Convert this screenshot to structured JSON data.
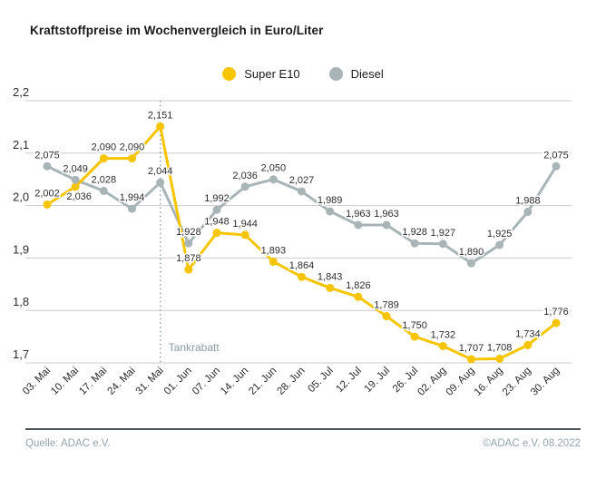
{
  "title": "Kraftstoffpreise im Wochenvergleich in Euro/Liter",
  "legend": [
    {
      "label": "Super E10",
      "color": "#f6c500"
    },
    {
      "label": "Diesel",
      "color": "#a8b4b6"
    }
  ],
  "chart_data": {
    "type": "line",
    "categories": [
      "03. Mai",
      "10. Mai",
      "17. Mai",
      "24. Mai",
      "31. Mai",
      "01. Jun",
      "07. Jun",
      "14. Jun",
      "21. Jun",
      "28. Jun",
      "05. Jul",
      "12. Jul",
      "19. Jul",
      "26. Jul",
      "02. Aug",
      "09. Aug",
      "16. Aug",
      "23. Aug",
      "30. Aug"
    ],
    "series": [
      {
        "name": "Super E10",
        "color": "#f6c500",
        "values": [
          2.002,
          2.036,
          2.09,
          2.09,
          2.151,
          1.878,
          1.948,
          1.944,
          1.893,
          1.864,
          1.843,
          1.826,
          1.789,
          1.75,
          1.732,
          1.707,
          1.708,
          1.734,
          1.776
        ]
      },
      {
        "name": "Diesel",
        "color": "#a8b4b6",
        "values": [
          2.075,
          2.049,
          2.028,
          1.994,
          2.044,
          1.928,
          1.992,
          2.036,
          2.05,
          2.027,
          1.989,
          1.963,
          1.963,
          1.928,
          1.927,
          1.89,
          1.925,
          1.988,
          2.075
        ]
      }
    ],
    "title": "Kraftstoffpreise im Wochenvergleich in Euro/Liter",
    "xlabel": "",
    "ylabel": "Euro/Liter",
    "ylim": [
      1.7,
      2.2
    ],
    "yticks": [
      "2,2",
      "2,1",
      "2,0",
      "1,9",
      "1,8",
      "1,7"
    ],
    "grid": true,
    "legend_position": "top-center",
    "value_labels": true,
    "decimal_separator": ",",
    "annotation": {
      "label": "Tankrabatt",
      "category": "31. Mai"
    }
  },
  "footer": {
    "source": "Quelle: ADAC e.V.",
    "copyright": "©ADAC e.V.  08.2022"
  },
  "colors": {
    "grid": "#cbcbcb",
    "axis_text": "#2b2b2b",
    "value_text": "#2d2d2d",
    "annotation": "#8c9ba3",
    "footer_text": "#93a4ac",
    "footer_rule": "#4c5659"
  }
}
